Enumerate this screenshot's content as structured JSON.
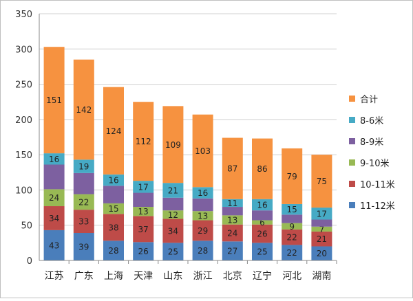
{
  "chart_data": {
    "type": "bar",
    "stacked": true,
    "categories": [
      "江苏",
      "广东",
      "上海",
      "天津",
      "山东",
      "浙江",
      "北京",
      "辽宁",
      "河北",
      "湖南"
    ],
    "series": [
      {
        "name": "11-12米",
        "color": "#4a7ebb",
        "values": [
          43,
          39,
          28,
          26,
          25,
          28,
          27,
          25,
          22,
          20
        ]
      },
      {
        "name": "10-11米",
        "color": "#be4b48",
        "values": [
          34,
          33,
          38,
          37,
          34,
          29,
          24,
          26,
          22,
          21
        ]
      },
      {
        "name": "9-10米",
        "color": "#98b954",
        "values": [
          24,
          22,
          15,
          13,
          12,
          13,
          13,
          6,
          9,
          7
        ]
      },
      {
        "name": "8-9米",
        "color": "#7d60a0",
        "values": [
          35,
          30,
          25,
          20,
          18,
          18,
          12,
          14,
          12,
          10
        ]
      },
      {
        "name": "8-6米",
        "color": "#46aac5",
        "values": [
          16,
          19,
          16,
          17,
          21,
          16,
          11,
          16,
          15,
          17
        ]
      },
      {
        "name": "合计",
        "color": "#f69240",
        "values": [
          151,
          142,
          124,
          112,
          109,
          103,
          87,
          86,
          79,
          75
        ]
      }
    ],
    "labeled_series": [
      0,
      1,
      2,
      4,
      5
    ],
    "ylim": [
      0,
      350
    ],
    "yticks": [
      0,
      50,
      100,
      150,
      200,
      250,
      300,
      350
    ],
    "grid": true,
    "legend": "right",
    "title": "",
    "xlabel": "",
    "ylabel": ""
  }
}
